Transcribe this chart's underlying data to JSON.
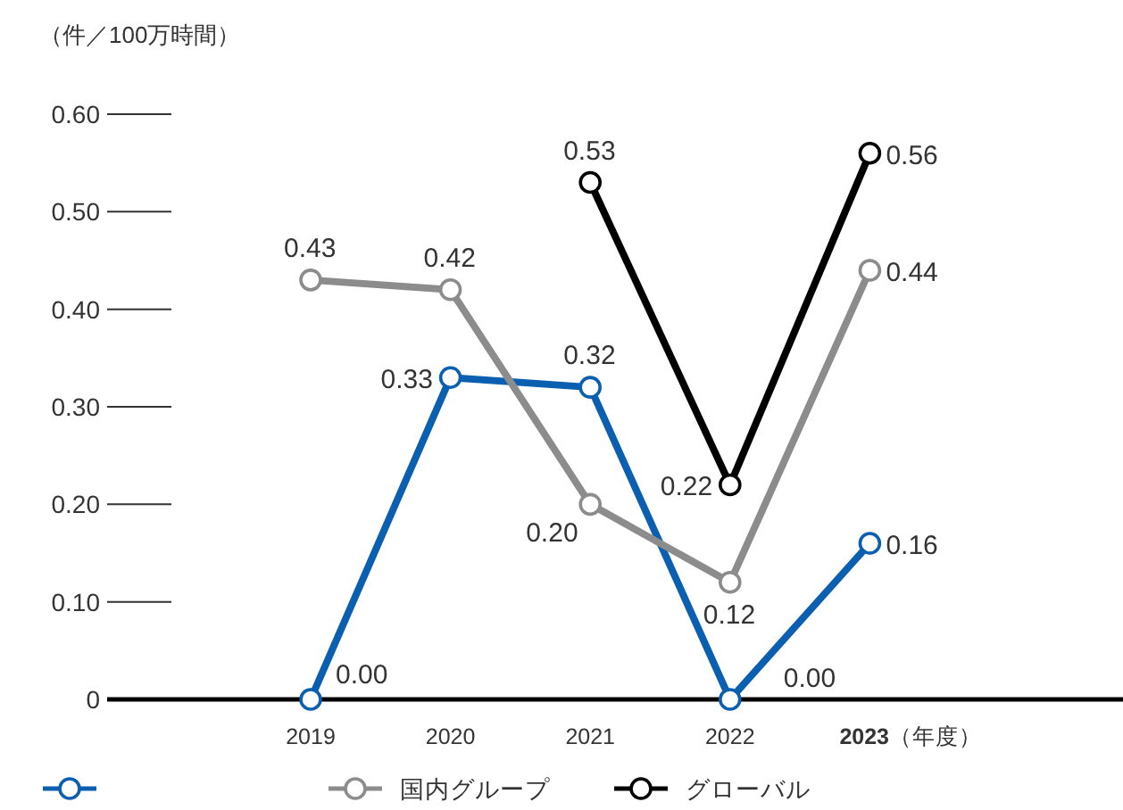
{
  "chart_data": {
    "type": "line",
    "ylabel": "（件／100万時間）",
    "xlabel": "（年度）",
    "categories": [
      "2019",
      "2020",
      "2021",
      "2022",
      "**2023**"
    ],
    "series": [
      {
        "color": "#0a5fb0",
        "values": [
          0.0,
          0.33,
          0.32,
          0.0,
          0.16
        ],
        "value_labels": [
          "0.00",
          "0.33",
          "0.32",
          "0.00",
          "0.16"
        ]
      },
      {
        "name": "国内グループ",
        "color": "#8c8c8c",
        "values": [
          0.43,
          0.42,
          0.2,
          0.12,
          0.44
        ],
        "value_labels": [
          "0.43",
          "0.42",
          "0.20",
          "0.12",
          "0.44"
        ]
      },
      {
        "name": "グローバル",
        "color": "#000000",
        "values": [
          null,
          null,
          0.53,
          0.22,
          0.56
        ],
        "value_labels": [
          null,
          null,
          "0.53",
          "0.22",
          "0.56"
        ]
      }
    ],
    "ylim": [
      0,
      0.6
    ],
    "yticks": [
      {
        "value": 0,
        "label": "0"
      },
      {
        "value": 0.1,
        "label": "0.10"
      },
      {
        "value": 0.2,
        "label": "0.20"
      },
      {
        "value": 0.3,
        "label": "0.30"
      },
      {
        "value": 0.4,
        "label": "0.40"
      },
      {
        "value": 0.5,
        "label": "0.50"
      },
      {
        "value": 0.6,
        "label": "0.60"
      }
    ],
    "marker": "circle",
    "line_style": "solid",
    "legend": "bottom left"
  }
}
